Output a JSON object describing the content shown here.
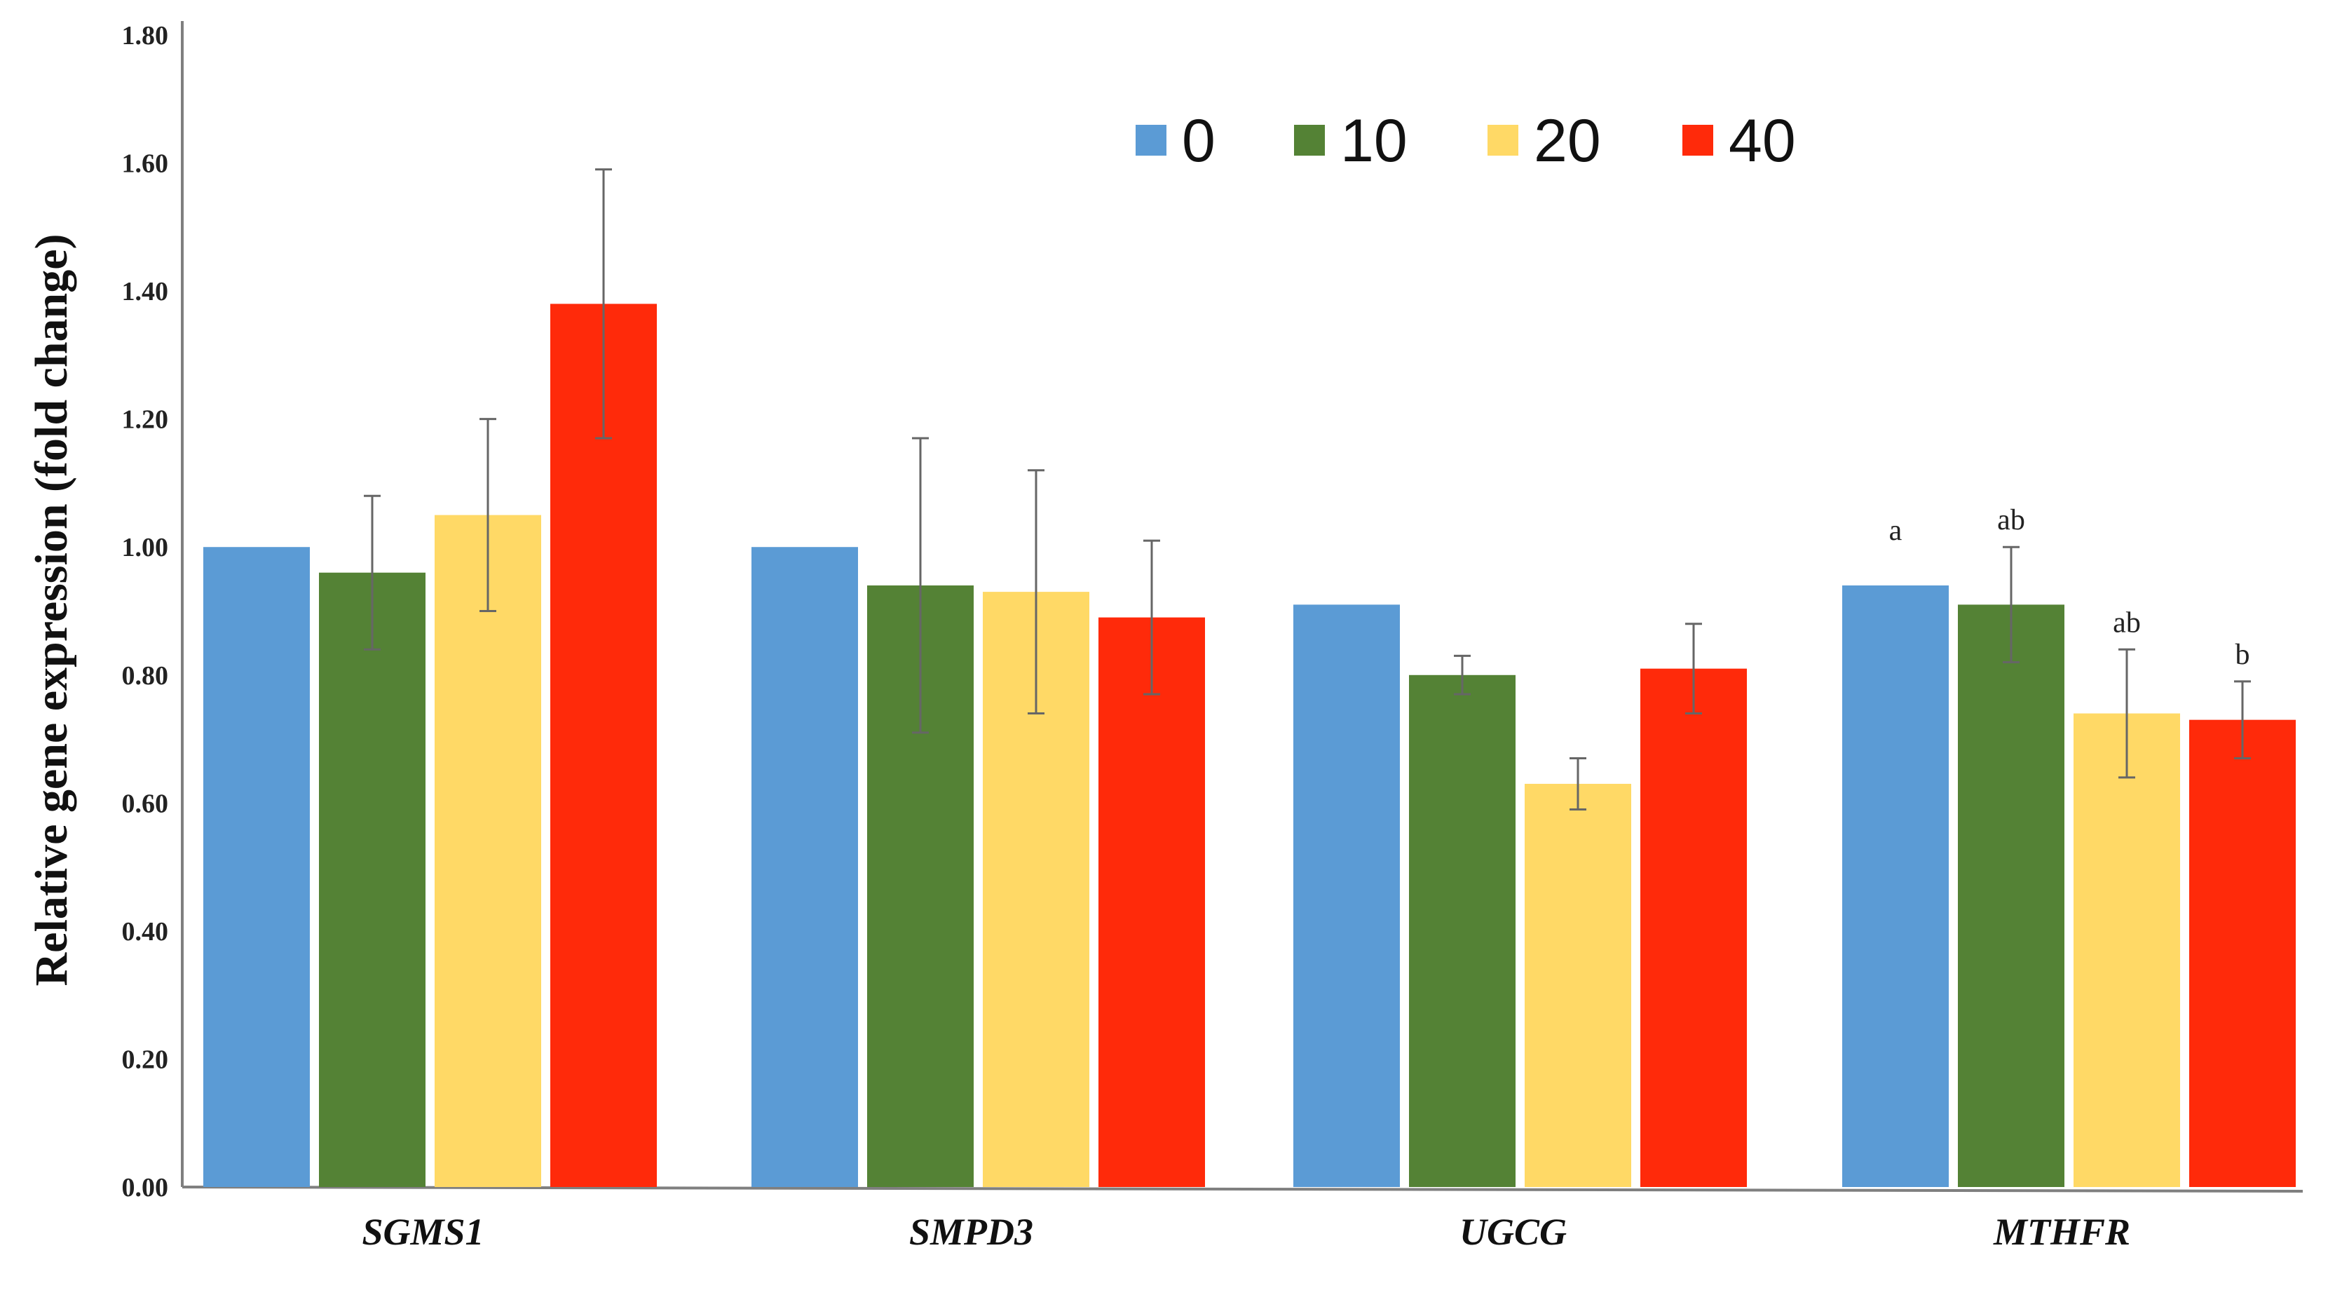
{
  "chart_data": {
    "type": "bar",
    "title": "",
    "xlabel": "",
    "ylabel": "Relative gene expression (fold change)",
    "ylim": [
      0,
      1.8
    ],
    "yticks": [
      "0.00",
      "0.20",
      "0.40",
      "0.60",
      "0.80",
      "1.00",
      "1.20",
      "1.40",
      "1.60",
      "1.80"
    ],
    "grid": false,
    "legend_position": "top-center",
    "categories": [
      "SGMS1",
      "SMPD3",
      "UGCG",
      "MTHFR"
    ],
    "series": [
      {
        "name": "0",
        "color": "#5B9BD5",
        "values": [
          1.0,
          1.0,
          0.91,
          0.94
        ],
        "errors": [
          0.0,
          0.0,
          0.0,
          0.0
        ],
        "annotations": [
          "",
          "",
          "",
          "a"
        ]
      },
      {
        "name": "10",
        "color": "#548235",
        "values": [
          0.96,
          0.94,
          0.8,
          0.91
        ],
        "errors": [
          0.12,
          0.23,
          0.03,
          0.09
        ],
        "annotations": [
          "",
          "",
          "",
          "ab"
        ]
      },
      {
        "name": "20",
        "color": "#FFD966",
        "values": [
          1.05,
          0.93,
          0.63,
          0.74
        ],
        "errors": [
          0.15,
          0.19,
          0.04,
          0.1
        ],
        "annotations": [
          "",
          "",
          "",
          "ab"
        ]
      },
      {
        "name": "40",
        "color": "#FF2A0A",
        "values": [
          1.38,
          0.89,
          0.81,
          0.73
        ],
        "errors": [
          0.21,
          0.12,
          0.07,
          0.06
        ],
        "annotations": [
          "",
          "",
          "",
          "b"
        ]
      }
    ]
  }
}
